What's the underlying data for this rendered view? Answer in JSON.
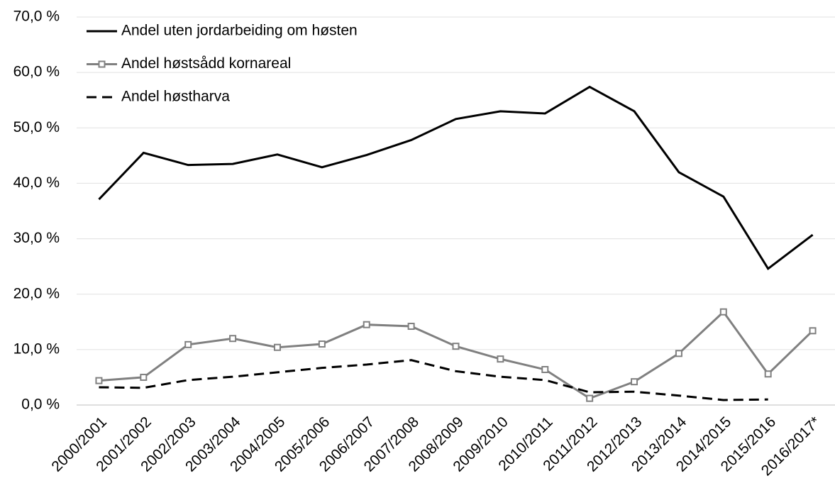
{
  "chart_data": {
    "type": "line",
    "categories": [
      "2000/2001",
      "2001/2002",
      "2002/2003",
      "2003/2004",
      "2004/2005",
      "2005/2006",
      "2006/2007",
      "2007/2008",
      "2008/2009",
      "2009/2010",
      "2010/2011",
      "2011/2012",
      "2012/2013",
      "2013/2014",
      "2014/2015",
      "2015/2016",
      "2016/2017*"
    ],
    "series": [
      {
        "name": "Andel uten jordarbeiding om høsten",
        "color": "#000000",
        "dashed": false,
        "marker": null,
        "values": [
          37.1,
          45.5,
          43.3,
          43.5,
          45.2,
          42.9,
          45.1,
          47.8,
          51.6,
          53.0,
          52.6,
          57.4,
          53.0,
          42.0,
          37.6,
          24.6,
          30.7
        ]
      },
      {
        "name": "Andel høstsådd kornareal",
        "color": "#808080",
        "dashed": false,
        "marker": "square",
        "values": [
          4.4,
          5.0,
          10.9,
          12.0,
          10.4,
          11.0,
          14.5,
          14.2,
          10.6,
          8.3,
          6.4,
          1.2,
          4.2,
          9.3,
          16.8,
          5.6,
          13.4
        ]
      },
      {
        "name": "Andel høstharva",
        "color": "#000000",
        "dashed": true,
        "marker": null,
        "values": [
          3.2,
          3.1,
          4.5,
          5.1,
          5.9,
          6.7,
          7.3,
          8.1,
          6.1,
          5.1,
          4.5,
          2.3,
          2.4,
          1.7,
          0.9,
          1.0,
          null
        ]
      }
    ],
    "ylim": [
      0,
      70
    ],
    "yticks": [
      {
        "value": 0,
        "label": "0,0 %"
      },
      {
        "value": 10,
        "label": "10,0 %"
      },
      {
        "value": 20,
        "label": "20,0 %"
      },
      {
        "value": 30,
        "label": "30,0 %"
      },
      {
        "value": 40,
        "label": "40,0 %"
      },
      {
        "value": 50,
        "label": "50,0 %"
      },
      {
        "value": 60,
        "label": "60,0 %"
      },
      {
        "value": 70,
        "label": "70,0 %"
      }
    ],
    "grid": true,
    "legend": "top-left"
  }
}
